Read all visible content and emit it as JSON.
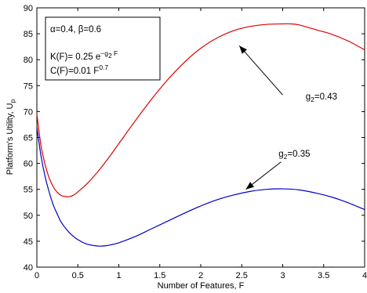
{
  "chart_data": {
    "type": "line",
    "xlabel": "Number of Features, F",
    "ylabel": {
      "main": "Platform's Utility, U",
      "sub": "p"
    },
    "xlim": [
      0,
      4
    ],
    "ylim": [
      40,
      90
    ],
    "xticks": [
      "0",
      "0.5",
      "1",
      "1.5",
      "2",
      "2.5",
      "3",
      "3.5",
      "4"
    ],
    "yticks": [
      "40",
      "45",
      "50",
      "55",
      "60",
      "65",
      "70",
      "75",
      "80",
      "85",
      "90"
    ],
    "grid": false,
    "series": [
      {
        "name": "g2=0.43",
        "color": "#e00000",
        "points": [
          [
            0,
            69.5
          ],
          [
            0.05,
            63.5
          ],
          [
            0.1,
            59.8
          ],
          [
            0.15,
            57.2
          ],
          [
            0.2,
            55.5
          ],
          [
            0.25,
            54.4
          ],
          [
            0.3,
            53.8
          ],
          [
            0.35,
            53.6
          ],
          [
            0.4,
            53.6
          ],
          [
            0.45,
            53.9
          ],
          [
            0.5,
            54.5
          ],
          [
            0.6,
            55.9
          ],
          [
            0.7,
            57.6
          ],
          [
            0.8,
            59.5
          ],
          [
            0.9,
            61.6
          ],
          [
            1.0,
            63.8
          ],
          [
            1.2,
            68.2
          ],
          [
            1.4,
            72.4
          ],
          [
            1.6,
            76.2
          ],
          [
            1.8,
            79.5
          ],
          [
            2.0,
            82.2
          ],
          [
            2.2,
            84.2
          ],
          [
            2.4,
            85.6
          ],
          [
            2.6,
            86.4
          ],
          [
            2.8,
            86.8
          ],
          [
            3.0,
            86.9
          ],
          [
            3.1,
            86.9
          ],
          [
            3.2,
            86.7
          ],
          [
            3.4,
            85.8
          ],
          [
            3.6,
            84.9
          ],
          [
            3.8,
            83.6
          ],
          [
            4.0,
            81.9
          ]
        ]
      },
      {
        "name": "g2=0.35",
        "color": "#0000c8",
        "points": [
          [
            0,
            67.0
          ],
          [
            0.05,
            61.5
          ],
          [
            0.1,
            57.5
          ],
          [
            0.15,
            54.5
          ],
          [
            0.2,
            52.0
          ],
          [
            0.25,
            50.2
          ],
          [
            0.3,
            48.6
          ],
          [
            0.4,
            46.6
          ],
          [
            0.5,
            45.3
          ],
          [
            0.6,
            44.5
          ],
          [
            0.7,
            44.15
          ],
          [
            0.78,
            44.05
          ],
          [
            0.85,
            44.15
          ],
          [
            0.9,
            44.3
          ],
          [
            1.0,
            44.7
          ],
          [
            1.2,
            45.9
          ],
          [
            1.4,
            47.4
          ],
          [
            1.6,
            48.9
          ],
          [
            1.8,
            50.4
          ],
          [
            2.0,
            51.8
          ],
          [
            2.2,
            53.0
          ],
          [
            2.4,
            53.9
          ],
          [
            2.6,
            54.6
          ],
          [
            2.8,
            55.0
          ],
          [
            3.0,
            55.1
          ],
          [
            3.2,
            54.9
          ],
          [
            3.4,
            54.3
          ],
          [
            3.6,
            53.5
          ],
          [
            3.8,
            52.4
          ],
          [
            4.0,
            51.1
          ]
        ]
      }
    ],
    "annotations": [
      {
        "id": "g043",
        "text_main": "g",
        "text_sub": "2",
        "text_rest": "=0.43",
        "text_x": 3.28,
        "text_y": 72.3,
        "arrow_from": [
          3.0,
          73.2
        ],
        "arrow_to": [
          2.47,
          82.7
        ]
      },
      {
        "id": "g035",
        "text_main": "g",
        "text_sub": "2",
        "text_rest": "=0.35",
        "text_x": 2.95,
        "text_y": 61.3,
        "arrow_from": [
          2.98,
          60.3
        ],
        "arrow_to": [
          2.55,
          55.0
        ]
      }
    ],
    "legend_box": {
      "line1": "α=0.4, β=0.6",
      "line2": {
        "a": "K(F)= 0.25 e",
        "b": "−g",
        "c": "2",
        "d": " F"
      },
      "line3": {
        "a": "C(F)=0.01 F",
        "b": "0.7"
      }
    }
  }
}
